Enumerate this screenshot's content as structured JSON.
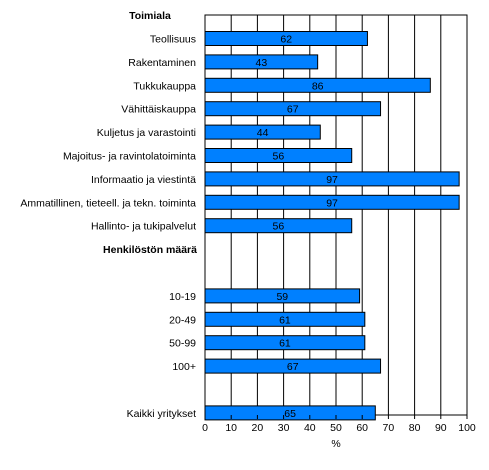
{
  "chart_data": {
    "type": "bar",
    "orientation": "horizontal",
    "xlabel": "%",
    "xlim": [
      0,
      100
    ],
    "xticks": [
      "0",
      "10",
      "20",
      "30",
      "40",
      "50",
      "60",
      "70",
      "80",
      "90",
      "100"
    ],
    "grid": "vertical",
    "bar_color": "#0080ff",
    "groups": [
      {
        "header": "Toimiala",
        "categories": [
          "Teollisuus",
          "Rakentaminen",
          "Tukkukauppa",
          "Vähittäiskauppa",
          "Kuljetus ja varastointi",
          "Majoitus- ja ravintolatoiminta",
          "Informaatio ja viestintä",
          "Ammatillinen, tieteell. ja tekn. toiminta",
          "Hallinto- ja tukipalvelut"
        ],
        "values": [
          62,
          43,
          86,
          67,
          44,
          56,
          97,
          97,
          56
        ]
      },
      {
        "header": "Henkilöstön määrä",
        "categories": [
          "10-19",
          "20-49",
          "50-99",
          "100+"
        ],
        "values": [
          59,
          61,
          61,
          67
        ]
      },
      {
        "header": "",
        "categories": [
          "Kaikki yritykset"
        ],
        "values": [
          65
        ]
      }
    ]
  }
}
